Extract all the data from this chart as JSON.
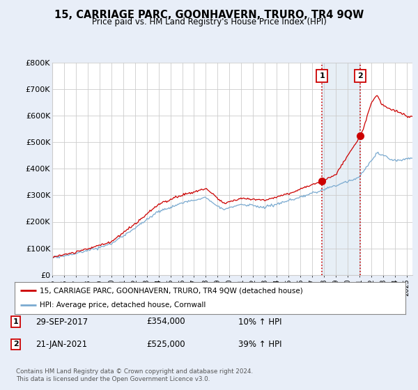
{
  "title": "15, CARRIAGE PARC, GOONHAVERN, TRURO, TR4 9QW",
  "subtitle": "Price paid vs. HM Land Registry's House Price Index (HPI)",
  "ylim": [
    0,
    800000
  ],
  "xlim_start": 1995.0,
  "xlim_end": 2025.5,
  "sale1_date": 2017.83,
  "sale1_price": 354000,
  "sale1_label": "1",
  "sale2_date": 2021.05,
  "sale2_price": 525000,
  "sale2_label": "2",
  "hpi_color": "#7aaad0",
  "price_color": "#cc0000",
  "vline_color": "#cc0000",
  "background_color": "#e8eef8",
  "plot_bg_color": "#ffffff",
  "legend_line1": "15, CARRIAGE PARC, GOONHAVERN, TRURO, TR4 9QW (detached house)",
  "legend_line2": "HPI: Average price, detached house, Cornwall",
  "annotation1_date": "29-SEP-2017",
  "annotation1_price": "£354,000",
  "annotation1_pct": "10% ↑ HPI",
  "annotation2_date": "21-JAN-2021",
  "annotation2_price": "£525,000",
  "annotation2_pct": "39% ↑ HPI",
  "footer": "Contains HM Land Registry data © Crown copyright and database right 2024.\nThis data is licensed under the Open Government Licence v3.0."
}
